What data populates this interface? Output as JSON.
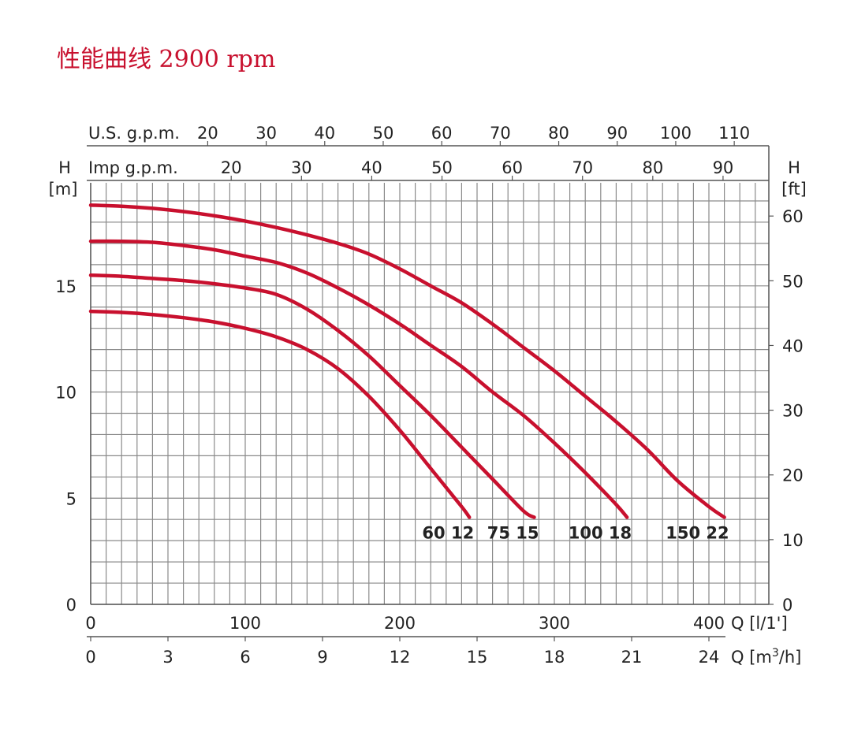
{
  "title": "性能曲线 2900 rpm",
  "colors": {
    "curve": "#c8102e",
    "grid": "#8a8a8a",
    "frame": "#555555",
    "text": "#222222"
  },
  "chart_data": {
    "type": "line",
    "title": "性能曲线 2900 rpm",
    "grid": true,
    "x_axis": {
      "label": "Q [l/1']",
      "range": [
        0,
        440
      ],
      "ticks": [
        0,
        100,
        200,
        300,
        400
      ],
      "tick_labels": [
        "0",
        "100",
        "200",
        "300",
        "400"
      ]
    },
    "x_axis_secondary": {
      "label": "Q [m3/h]",
      "label_main": "Q [m",
      "label_sup": "3",
      "label_end": "/h]",
      "ticks": [
        0,
        3,
        6,
        9,
        12,
        15,
        18,
        21,
        24
      ],
      "tick_labels": [
        "0",
        "3",
        "6",
        "9",
        "12",
        "15",
        "18",
        "21",
        "24"
      ]
    },
    "x_axis_top_us": {
      "label": "U.S. g.p.m.",
      "ticks": [
        20,
        30,
        40,
        50,
        60,
        70,
        80,
        90,
        100,
        110
      ],
      "tick_labels": [
        "20",
        "30",
        "40",
        "50",
        "60",
        "70",
        "80",
        "90",
        "100",
        "110"
      ]
    },
    "x_axis_top_imp": {
      "label": "Imp g.p.m.",
      "ticks": [
        20,
        30,
        40,
        50,
        60,
        70,
        80,
        90
      ],
      "tick_labels": [
        "20",
        "30",
        "40",
        "50",
        "60",
        "70",
        "80",
        "90"
      ]
    },
    "y_axis_left": {
      "label": "H",
      "unit": "[m]",
      "range": [
        0,
        20
      ],
      "ticks": [
        0,
        5,
        10,
        15
      ],
      "tick_labels": [
        "0",
        "5",
        "10",
        "15"
      ]
    },
    "y_axis_right": {
      "label": "H",
      "unit": "[ft]",
      "ticks": [
        0,
        10,
        20,
        30,
        40,
        50,
        60
      ],
      "tick_labels": [
        "0",
        "10",
        "20",
        "30",
        "40",
        "50",
        "60"
      ]
    },
    "series": [
      {
        "name": "60 12",
        "x": [
          0,
          20,
          40,
          60,
          80,
          100,
          120,
          140,
          160,
          180,
          200,
          220,
          240,
          245
        ],
        "y": [
          13.8,
          13.75,
          13.65,
          13.5,
          13.3,
          13.0,
          12.6,
          12.0,
          11.1,
          9.8,
          8.2,
          6.4,
          4.6,
          4.1
        ]
      },
      {
        "name": "75 15",
        "x": [
          0,
          20,
          40,
          60,
          80,
          100,
          120,
          140,
          160,
          180,
          200,
          220,
          240,
          260,
          280,
          287
        ],
        "y": [
          15.5,
          15.45,
          15.35,
          15.25,
          15.1,
          14.9,
          14.6,
          13.9,
          12.9,
          11.7,
          10.3,
          8.9,
          7.4,
          5.9,
          4.4,
          4.1
        ]
      },
      {
        "name": "100 18",
        "x": [
          0,
          20,
          40,
          60,
          80,
          100,
          120,
          140,
          160,
          180,
          200,
          220,
          240,
          260,
          280,
          300,
          320,
          340,
          347
        ],
        "y": [
          17.1,
          17.1,
          17.05,
          16.9,
          16.7,
          16.4,
          16.1,
          15.6,
          14.9,
          14.1,
          13.2,
          12.2,
          11.2,
          10.0,
          8.9,
          7.6,
          6.2,
          4.7,
          4.1
        ]
      },
      {
        "name": "150 22",
        "x": [
          0,
          20,
          40,
          60,
          80,
          100,
          120,
          140,
          160,
          180,
          200,
          220,
          240,
          260,
          280,
          300,
          320,
          340,
          360,
          380,
          400,
          410
        ],
        "y": [
          18.8,
          18.75,
          18.65,
          18.5,
          18.3,
          18.05,
          17.75,
          17.4,
          17.0,
          16.5,
          15.8,
          15.0,
          14.2,
          13.2,
          12.1,
          11.0,
          9.8,
          8.6,
          7.3,
          5.8,
          4.6,
          4.1
        ]
      }
    ]
  }
}
